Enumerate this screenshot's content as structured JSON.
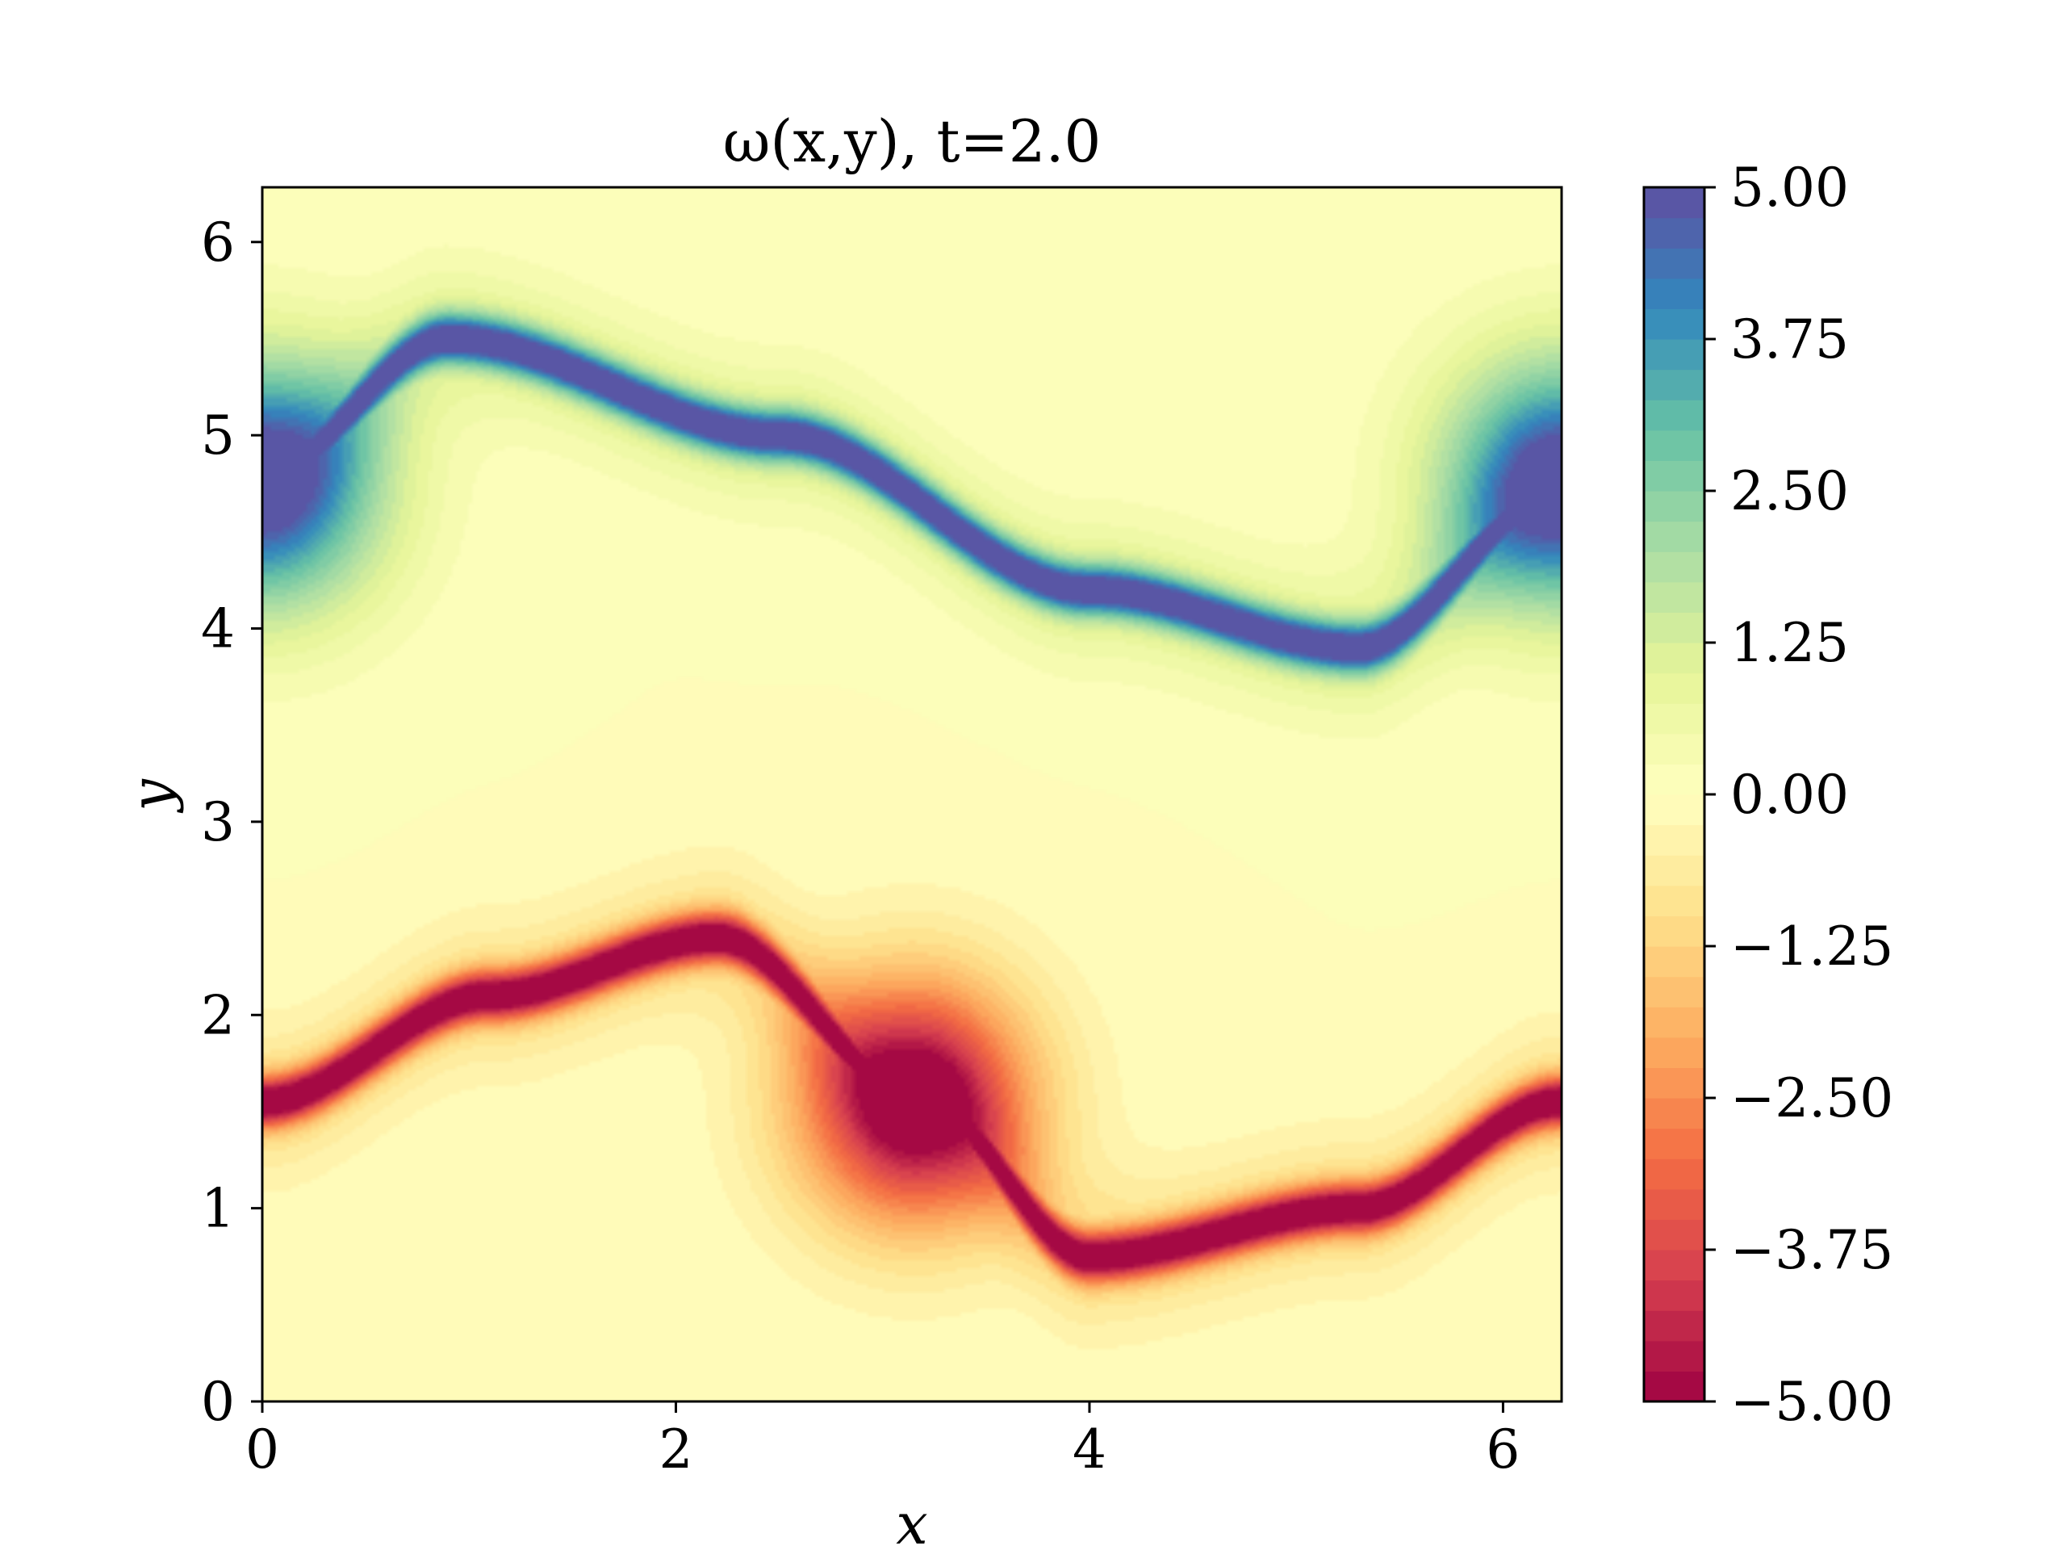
{
  "chart_data": {
    "type": "heatmap",
    "title": "ω(x,y),    t=2.0",
    "xlabel": "x",
    "ylabel": "y",
    "xlim": [
      0,
      6.2832
    ],
    "ylim": [
      0,
      6.2832
    ],
    "x_ticks": [
      {
        "value": 0,
        "label": "0"
      },
      {
        "value": 2,
        "label": "2"
      },
      {
        "value": 4,
        "label": "4"
      },
      {
        "value": 6,
        "label": "6"
      }
    ],
    "y_ticks": [
      {
        "value": 0,
        "label": "0"
      },
      {
        "value": 1,
        "label": "1"
      },
      {
        "value": 2,
        "label": "2"
      },
      {
        "value": 3,
        "label": "3"
      },
      {
        "value": 4,
        "label": "4"
      },
      {
        "value": 5,
        "label": "5"
      },
      {
        "value": 6,
        "label": "6"
      }
    ],
    "colorbar": {
      "colormap": "Spectral",
      "range": [
        -5.0,
        5.0
      ],
      "ticks": [
        {
          "value": 5.0,
          "label": "5.00"
        },
        {
          "value": 3.75,
          "label": "3.75"
        },
        {
          "value": 2.5,
          "label": "2.50"
        },
        {
          "value": 1.25,
          "label": "1.25"
        },
        {
          "value": 0.0,
          "label": "0.00"
        },
        {
          "value": -1.25,
          "label": "−1.25"
        },
        {
          "value": -2.5,
          "label": "−2.50"
        },
        {
          "value": -3.75,
          "label": "−3.75"
        },
        {
          "value": -5.0,
          "label": "−5.00"
        }
      ]
    },
    "features": [
      {
        "name": "positive vortex sheet",
        "sign": 1,
        "peak": 4.9,
        "center_line": [
          [
            0,
            4.8
          ],
          [
            0.9,
            5.5
          ],
          [
            2.5,
            5.0
          ],
          [
            4.0,
            4.2
          ],
          [
            5.3,
            3.9
          ],
          [
            6.2832,
            4.7
          ]
        ],
        "core": {
          "x": 0.0,
          "y": 4.75
        }
      },
      {
        "name": "negative vortex sheet",
        "sign": -1,
        "peak": -4.9,
        "center_line": [
          [
            0,
            1.55
          ],
          [
            1.1,
            2.1
          ],
          [
            2.2,
            2.4
          ],
          [
            3.2,
            1.55
          ],
          [
            4.0,
            0.75
          ],
          [
            5.3,
            1.0
          ],
          [
            6.2832,
            1.55
          ]
        ],
        "core": {
          "x": 3.15,
          "y": 1.55
        }
      }
    ],
    "colors": {
      "background": "#fdfbb9",
      "positive_peak": "#5a4aa6",
      "negative_peak": "#a50d45"
    }
  }
}
